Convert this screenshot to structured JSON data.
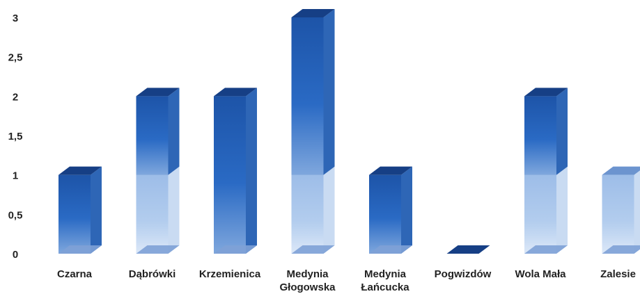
{
  "chart_data": {
    "type": "bar",
    "stacked": true,
    "three_d": true,
    "title": "",
    "xlabel": "",
    "ylabel": "",
    "ylim": [
      0,
      3
    ],
    "yticks": [
      "0",
      "0,5",
      "1",
      "1,5",
      "2",
      "2,5",
      "3"
    ],
    "ytick_values": [
      0,
      0.5,
      1,
      1.5,
      2,
      2.5,
      3
    ],
    "grid": false,
    "legend": "none",
    "categories": [
      [
        "Czarna"
      ],
      [
        "Dąbrówki"
      ],
      [
        "Krzemienica"
      ],
      [
        "Medynia",
        "Głogowska"
      ],
      [
        "Medynia",
        "Łańcucka"
      ],
      [
        "Pogwizdów"
      ],
      [
        "Wola Mała"
      ],
      [
        "Zalesie"
      ]
    ],
    "series": [
      {
        "color": "#a9c4ea",
        "values": [
          0,
          1,
          0,
          1,
          0,
          0,
          1,
          1
        ]
      },
      {
        "color": "#1f5fb8",
        "values": [
          1,
          1,
          2,
          2,
          1,
          0,
          1,
          0
        ]
      }
    ]
  }
}
